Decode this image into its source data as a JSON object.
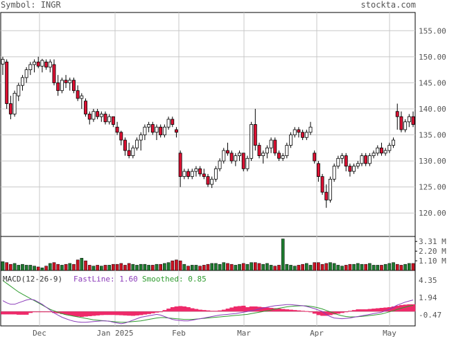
{
  "header": {
    "symbol_label": "Symbol: INGR",
    "site": "stockta.com"
  },
  "colors": {
    "up_candle": "#ffffff",
    "down_candle": "#dd1133",
    "volume_up": "#1d7a2e",
    "volume_down": "#cc1122",
    "fastline": "#8a3ab9",
    "smoothed": "#2e9b2e",
    "histogram": "#ee2a6a",
    "grid": "#c8c8c8"
  },
  "macd_legend": {
    "title": "MACD(12-26-9)",
    "fast_label": "FastLine:",
    "fast_value": "1.60",
    "smooth_label": "Smoothed:",
    "smooth_value": "0.85"
  },
  "chart_data": [
    {
      "type": "candlestick",
      "panel": "price",
      "ylim": [
        115.5,
        158.5
      ],
      "y_ticks": [
        "155.00",
        "150.00",
        "145.00",
        "140.00",
        "135.00",
        "130.00",
        "125.00",
        "120.00"
      ],
      "x_tick_labels": [
        "Dec",
        "Jan 2025",
        "Feb",
        "Mar",
        "Apr",
        "May"
      ],
      "grid": true,
      "ohlc": [
        [
          148.6,
          150.0,
          146.5,
          149.5
        ],
        [
          149.0,
          149.5,
          140.0,
          141.0
        ],
        [
          141.0,
          142.5,
          138.0,
          139.0
        ],
        [
          139.0,
          143.5,
          138.5,
          143.0
        ],
        [
          142.5,
          145.0,
          141.5,
          144.5
        ],
        [
          144.5,
          146.5,
          143.5,
          146.0
        ],
        [
          146.0,
          148.0,
          145.0,
          147.5
        ],
        [
          147.5,
          149.0,
          146.5,
          148.5
        ],
        [
          148.5,
          149.5,
          147.0,
          149.0
        ],
        [
          149.0,
          150.0,
          147.8,
          148.2
        ],
        [
          148.2,
          149.6,
          147.0,
          149.3
        ],
        [
          149.0,
          149.5,
          147.5,
          148.0
        ],
        [
          148.0,
          149.5,
          147.0,
          149.0
        ],
        [
          148.5,
          149.5,
          144.5,
          145.0
        ],
        [
          145.0,
          146.5,
          142.5,
          143.5
        ],
        [
          143.5,
          146.0,
          143.0,
          145.5
        ],
        [
          145.5,
          146.5,
          144.0,
          145.0
        ],
        [
          145.0,
          146.0,
          143.5,
          145.5
        ],
        [
          145.5,
          146.0,
          143.0,
          143.5
        ],
        [
          143.5,
          144.5,
          141.5,
          142.0
        ],
        [
          142.0,
          143.0,
          140.0,
          142.5
        ],
        [
          141.5,
          142.0,
          138.5,
          139.0
        ],
        [
          139.0,
          139.5,
          137.0,
          138.0
        ],
        [
          138.0,
          140.0,
          137.5,
          139.5
        ],
        [
          139.5,
          140.0,
          138.0,
          138.5
        ],
        [
          138.5,
          139.5,
          137.5,
          139.0
        ],
        [
          139.0,
          139.5,
          137.0,
          137.5
        ],
        [
          137.5,
          139.0,
          137.0,
          138.5
        ],
        [
          138.5,
          138.5,
          136.5,
          137.0
        ],
        [
          136.5,
          137.5,
          135.0,
          135.5
        ],
        [
          135.5,
          135.8,
          133.0,
          134.0
        ],
        [
          134.0,
          134.5,
          131.0,
          132.0
        ],
        [
          132.0,
          133.5,
          130.5,
          131.0
        ],
        [
          131.0,
          133.0,
          130.5,
          132.5
        ],
        [
          132.5,
          134.5,
          132.0,
          134.0
        ],
        [
          134.0,
          135.5,
          132.0,
          135.0
        ],
        [
          135.0,
          137.0,
          134.0,
          136.5
        ],
        [
          136.5,
          137.5,
          135.5,
          137.0
        ],
        [
          137.0,
          137.5,
          135.0,
          135.5
        ],
        [
          135.5,
          137.0,
          134.0,
          136.5
        ],
        [
          136.5,
          137.0,
          134.5,
          135.0
        ],
        [
          135.0,
          137.0,
          134.5,
          136.5
        ],
        [
          136.5,
          138.5,
          136.0,
          138.0
        ],
        [
          138.0,
          138.5,
          136.5,
          137.0
        ],
        [
          136.0,
          136.5,
          134.5,
          135.5
        ],
        [
          131.5,
          132.0,
          125.0,
          127.0
        ],
        [
          127.0,
          128.5,
          126.5,
          128.0
        ],
        [
          128.0,
          128.5,
          126.5,
          127.0
        ],
        [
          127.0,
          128.5,
          126.5,
          128.0
        ],
        [
          128.0,
          129.0,
          127.0,
          128.5
        ],
        [
          128.5,
          129.0,
          127.0,
          127.5
        ],
        [
          127.5,
          128.5,
          126.5,
          127.0
        ],
        [
          127.0,
          127.5,
          125.0,
          125.5
        ],
        [
          125.5,
          127.0,
          124.8,
          126.5
        ],
        [
          126.5,
          129.0,
          126.0,
          128.5
        ],
        [
          128.5,
          130.5,
          128.0,
          130.0
        ],
        [
          130.0,
          132.5,
          129.5,
          132.0
        ],
        [
          132.0,
          133.5,
          131.0,
          131.5
        ],
        [
          131.5,
          132.0,
          129.5,
          130.0
        ],
        [
          130.0,
          131.5,
          129.0,
          131.0
        ],
        [
          131.0,
          132.0,
          130.0,
          131.5
        ],
        [
          131.5,
          131.5,
          128.0,
          128.5
        ],
        [
          128.5,
          131.0,
          128.0,
          130.5
        ],
        [
          130.5,
          137.5,
          130.0,
          137.0
        ],
        [
          137.0,
          140.0,
          132.0,
          133.0
        ],
        [
          133.0,
          133.5,
          130.5,
          131.0
        ],
        [
          131.0,
          132.0,
          129.5,
          131.5
        ],
        [
          131.5,
          133.0,
          130.5,
          132.5
        ],
        [
          132.5,
          134.5,
          131.5,
          134.0
        ],
        [
          134.0,
          134.5,
          131.0,
          131.5
        ],
        [
          131.5,
          132.0,
          130.0,
          130.5
        ],
        [
          130.5,
          131.5,
          130.0,
          131.0
        ],
        [
          131.0,
          133.5,
          130.5,
          133.0
        ],
        [
          133.0,
          135.5,
          132.5,
          135.0
        ],
        [
          135.0,
          136.5,
          134.5,
          136.0
        ],
        [
          136.0,
          136.5,
          134.5,
          135.5
        ],
        [
          135.5,
          136.0,
          134.0,
          134.5
        ],
        [
          134.5,
          136.0,
          134.0,
          135.5
        ],
        [
          135.5,
          137.5,
          135.0,
          136.5
        ],
        [
          131.5,
          132.0,
          129.5,
          130.0
        ],
        [
          129.5,
          130.0,
          126.0,
          127.0
        ],
        [
          127.0,
          127.5,
          123.5,
          124.0
        ],
        [
          124.0,
          125.5,
          121.0,
          122.5
        ],
        [
          122.5,
          127.0,
          122.0,
          126.5
        ],
        [
          126.5,
          129.5,
          126.0,
          129.0
        ],
        [
          129.0,
          131.0,
          128.5,
          130.5
        ],
        [
          130.5,
          131.5,
          129.5,
          131.0
        ],
        [
          131.0,
          131.5,
          128.0,
          129.0
        ],
        [
          129.0,
          129.5,
          127.0,
          128.0
        ],
        [
          128.0,
          129.5,
          127.5,
          129.0
        ],
        [
          129.0,
          130.0,
          128.5,
          129.5
        ],
        [
          129.5,
          131.5,
          129.0,
          131.0
        ],
        [
          131.0,
          131.5,
          129.0,
          129.5
        ],
        [
          129.5,
          131.5,
          129.0,
          131.0
        ],
        [
          131.0,
          132.0,
          130.5,
          131.5
        ],
        [
          131.5,
          133.0,
          131.0,
          132.5
        ],
        [
          132.5,
          133.5,
          131.0,
          131.5
        ],
        [
          131.5,
          132.5,
          131.0,
          132.0
        ],
        [
          132.0,
          133.5,
          131.5,
          133.0
        ],
        [
          133.0,
          134.5,
          132.5,
          134.0
        ],
        [
          139.5,
          141.0,
          136.0,
          138.5
        ],
        [
          138.5,
          139.5,
          135.5,
          136.0
        ],
        [
          136.0,
          138.0,
          135.5,
          137.5
        ],
        [
          137.5,
          139.0,
          136.5,
          138.5
        ],
        [
          138.5,
          139.5,
          136.5,
          137.0
        ]
      ]
    },
    {
      "type": "bar",
      "panel": "volume",
      "unit": "M",
      "ylim": [
        0,
        3.8
      ],
      "y_ticks": [
        "3.31 M",
        "2.20 M",
        "1.10 M"
      ],
      "values": [
        1.0,
        0.9,
        0.7,
        0.8,
        0.6,
        0.7,
        0.6,
        0.6,
        0.5,
        0.4,
        0.3,
        0.5,
        0.8,
        0.9,
        0.7,
        0.6,
        0.7,
        0.8,
        0.7,
        1.2,
        1.4,
        1.1,
        0.6,
        0.5,
        0.6,
        0.5,
        0.6,
        0.6,
        0.7,
        0.7,
        0.8,
        0.6,
        0.8,
        0.7,
        0.6,
        0.7,
        0.7,
        0.6,
        0.6,
        0.7,
        0.7,
        0.8,
        0.9,
        1.1,
        1.2,
        1.1,
        0.7,
        0.5,
        0.6,
        0.6,
        0.5,
        0.6,
        0.7,
        0.8,
        0.8,
        0.7,
        0.9,
        0.8,
        0.7,
        0.6,
        0.7,
        0.8,
        0.7,
        0.9,
        0.9,
        0.8,
        0.7,
        0.8,
        0.6,
        0.5,
        0.6,
        3.6,
        0.7,
        0.6,
        0.5,
        0.6,
        0.7,
        0.8,
        0.6,
        0.9,
        0.9,
        0.7,
        0.8,
        0.9,
        0.8,
        0.6,
        0.5,
        0.6,
        0.7,
        0.7,
        0.8,
        0.7,
        0.7,
        0.8,
        0.6,
        0.6,
        0.6,
        0.7,
        0.8,
        0.9,
        0.7,
        0.6,
        0.7,
        0.8,
        0.8
      ]
    },
    {
      "type": "line",
      "panel": "macd",
      "ylim": [
        -2.0,
        5.6
      ],
      "y_ticks": [
        "4.35",
        "1.94",
        "-0.47"
      ],
      "series_keys": [
        "fastline",
        "smoothed",
        "histogram"
      ],
      "fastline": [
        1.5,
        1.2,
        1.0,
        1.0,
        1.2,
        1.4,
        1.6,
        1.7,
        1.6,
        1.3,
        1.0,
        0.6,
        0.2,
        -0.2,
        -0.5,
        -0.8,
        -1.0,
        -1.2,
        -1.35,
        -1.45,
        -1.5,
        -1.5,
        -1.45,
        -1.4,
        -1.35,
        -1.3,
        -1.3,
        -1.35,
        -1.5,
        -1.6,
        -1.7,
        -1.6,
        -1.4,
        -1.2,
        -1.0,
        -0.8,
        -0.7,
        -0.6,
        -0.5,
        -0.4,
        -0.5,
        -0.7,
        -0.9,
        -1.1,
        -1.2,
        -1.25,
        -1.3,
        -1.3,
        -1.2,
        -1.1,
        -1.0,
        -0.9,
        -0.8,
        -0.7,
        -0.6,
        -0.5,
        -0.45,
        -0.4,
        -0.35,
        -0.3,
        -0.2,
        -0.1,
        0.0,
        0.1,
        0.2,
        0.35,
        0.5,
        0.6,
        0.7,
        0.8,
        0.85,
        0.9,
        0.95,
        0.95,
        0.9,
        0.85,
        0.8,
        0.7,
        0.55,
        0.4,
        0.2,
        0.0,
        -0.4,
        -0.7,
        -0.9,
        -0.95,
        -1.0,
        -0.95,
        -0.9,
        -0.8,
        -0.7,
        -0.6,
        -0.5,
        -0.4,
        -0.3,
        -0.2,
        -0.1,
        0.1,
        0.3,
        0.6,
        0.9,
        1.1,
        1.3,
        1.45,
        1.6
      ],
      "smoothed": [
        4.3,
        3.9,
        3.5,
        3.1,
        2.7,
        2.4,
        2.1,
        1.8,
        1.5,
        1.2,
        0.9,
        0.6,
        0.3,
        0.1,
        -0.1,
        -0.3,
        -0.45,
        -0.55,
        -0.65,
        -0.75,
        -0.85,
        -0.95,
        -1.05,
        -1.15,
        -1.2,
        -1.25,
        -1.3,
        -1.35,
        -1.4,
        -1.45,
        -1.5,
        -1.5,
        -1.45,
        -1.4,
        -1.35,
        -1.3,
        -1.2,
        -1.1,
        -1.0,
        -0.9,
        -0.85,
        -0.85,
        -0.9,
        -0.95,
        -1.0,
        -1.05,
        -1.1,
        -1.1,
        -1.1,
        -1.05,
        -1.0,
        -0.95,
        -0.9,
        -0.85,
        -0.8,
        -0.75,
        -0.7,
        -0.65,
        -0.6,
        -0.55,
        -0.5,
        -0.45,
        -0.4,
        -0.3,
        -0.2,
        -0.1,
        0.0,
        0.1,
        0.2,
        0.35,
        0.45,
        0.55,
        0.65,
        0.7,
        0.75,
        0.78,
        0.8,
        0.78,
        0.72,
        0.62,
        0.5,
        0.35,
        0.15,
        -0.05,
        -0.25,
        -0.45,
        -0.6,
        -0.7,
        -0.75,
        -0.75,
        -0.72,
        -0.68,
        -0.62,
        -0.56,
        -0.5,
        -0.42,
        -0.34,
        -0.2,
        -0.05,
        0.1,
        0.3,
        0.45,
        0.6,
        0.75,
        0.85
      ],
      "histogram": [
        -0.4,
        -0.4,
        -0.4,
        -0.4,
        -0.45,
        -0.45,
        -0.45,
        -0.2,
        -0.1,
        -0.1,
        -0.1,
        -0.1,
        -0.1,
        -0.2,
        -0.25,
        -0.35,
        -0.45,
        -0.55,
        -0.65,
        -0.7,
        -0.75,
        -0.7,
        -0.65,
        -0.6,
        -0.55,
        -0.5,
        -0.48,
        -0.48,
        -0.48,
        -0.5,
        -0.52,
        -0.55,
        -0.58,
        -0.6,
        -0.55,
        -0.5,
        -0.42,
        -0.35,
        -0.25,
        -0.15,
        -0.05,
        0.2,
        0.4,
        0.6,
        0.7,
        0.75,
        0.7,
        0.6,
        0.45,
        0.35,
        0.25,
        0.2,
        0.15,
        0.1,
        0.1,
        0.15,
        0.25,
        0.4,
        0.55,
        0.7,
        0.75,
        0.8,
        0.6,
        0.7,
        0.7,
        0.65,
        0.6,
        0.55,
        0.5,
        0.45,
        0.4,
        0.35,
        0.3,
        0.25,
        0.2,
        0.15,
        0.1,
        0.05,
        -0.1,
        -0.3,
        -0.5,
        -0.6,
        -0.6,
        -0.5,
        -0.4,
        -0.3,
        -0.2,
        -0.1,
        0.1,
        0.2,
        0.3,
        0.3,
        0.3,
        0.35,
        0.4,
        0.45,
        0.5,
        0.55,
        0.6,
        0.7,
        0.8,
        0.9,
        0.95,
        1.0,
        1.0
      ]
    }
  ]
}
